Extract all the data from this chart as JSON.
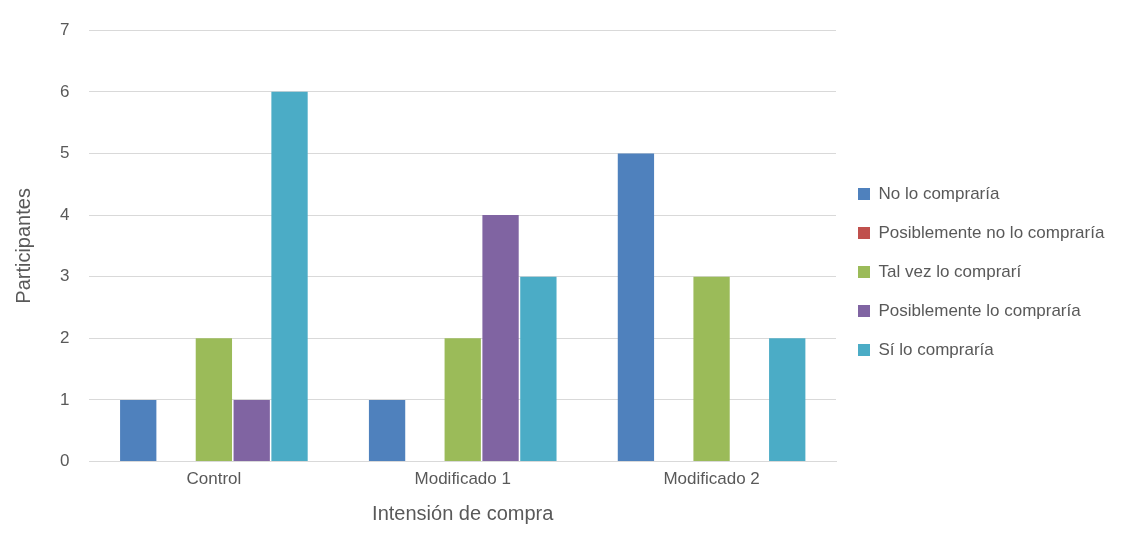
{
  "chart_data": {
    "type": "bar",
    "xlabel": "Intensión de compra",
    "ylabel": "Participantes",
    "categories": [
      "Control",
      "Modificado 1",
      "Modificado 2"
    ],
    "series": [
      {
        "name": "No lo compraría",
        "color": "#4f81bd",
        "values": [
          1,
          1,
          5
        ]
      },
      {
        "name": "Posiblemente no lo compraría",
        "color": "#c0504d",
        "values": [
          0,
          0,
          0
        ]
      },
      {
        "name": "Tal vez lo comprarí",
        "color": "#9bbb59",
        "values": [
          2,
          2,
          3
        ]
      },
      {
        "name": "Posiblemente lo compraría",
        "color": "#8064a2",
        "values": [
          1,
          4,
          0
        ]
      },
      {
        "name": "Sí lo compraría",
        "color": "#4bacc6",
        "values": [
          6,
          3,
          2
        ]
      }
    ],
    "ylim": [
      0,
      7
    ],
    "yticks": [
      0,
      1,
      2,
      3,
      4,
      5,
      6,
      7
    ],
    "grid": "y",
    "legend": "right"
  }
}
